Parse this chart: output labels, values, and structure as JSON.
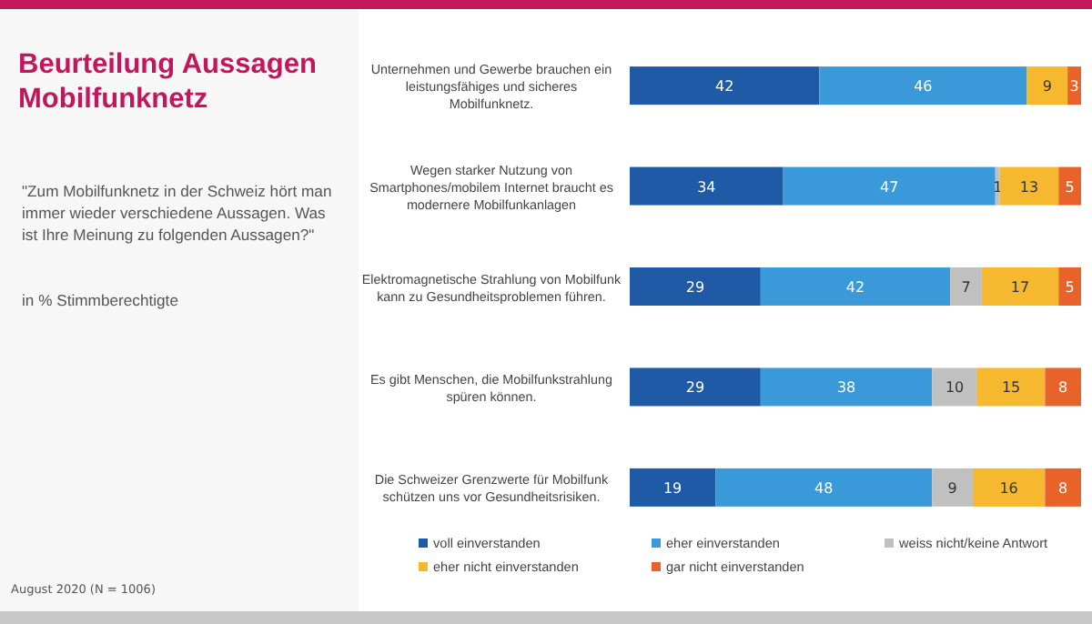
{
  "chart_data": {
    "type": "bar",
    "orientation": "horizontal",
    "stacked": true,
    "title": "Beurteilung Aussagen Mobilfunknetz",
    "subtitle": "\"Zum Mobilfunknetz in der Schweiz hört man immer wieder verschiedene Aussagen. Was ist Ihre Meinung zu folgenden Aussagen?\"",
    "annotations": [
      "in % Stimmberechtigte",
      "August 2020 (N = 1006)"
    ],
    "categories": [
      "Unternehmen und Gewerbe brauchen ein leistungsfähiges und sicheres Mobilfunknetz.",
      "Wegen starker Nutzung von Smartphones/mobilem Internet braucht es modernere Mobilfunkanlagen",
      "Elektromagnetische Strahlung von Mobilfunk kann zu Gesundheitsproblemen führen.",
      "Es gibt Menschen, die Mobilfunkstrahlung spüren können.",
      "Die Schweizer Grenzwerte für Mobilfunk schützen uns vor Gesundheitsrisiken."
    ],
    "series": [
      {
        "name": "voll einverstanden",
        "color": "#1f5aa6",
        "values": [
          42,
          34,
          29,
          29,
          19
        ]
      },
      {
        "name": "eher einverstanden",
        "color": "#3a9ad9",
        "values": [
          46,
          47,
          42,
          38,
          48
        ]
      },
      {
        "name": "weiss nicht/keine Antwort",
        "color": "#c0c0c0",
        "values": [
          null,
          1,
          7,
          10,
          9
        ]
      },
      {
        "name": "eher nicht einverstanden",
        "color": "#f5b82e",
        "values": [
          9,
          13,
          17,
          15,
          16
        ]
      },
      {
        "name": "gar nicht einverstanden",
        "color": "#e8632a",
        "values": [
          3,
          5,
          5,
          8,
          8
        ]
      }
    ],
    "data_labels": true,
    "legend": "bottom"
  }
}
